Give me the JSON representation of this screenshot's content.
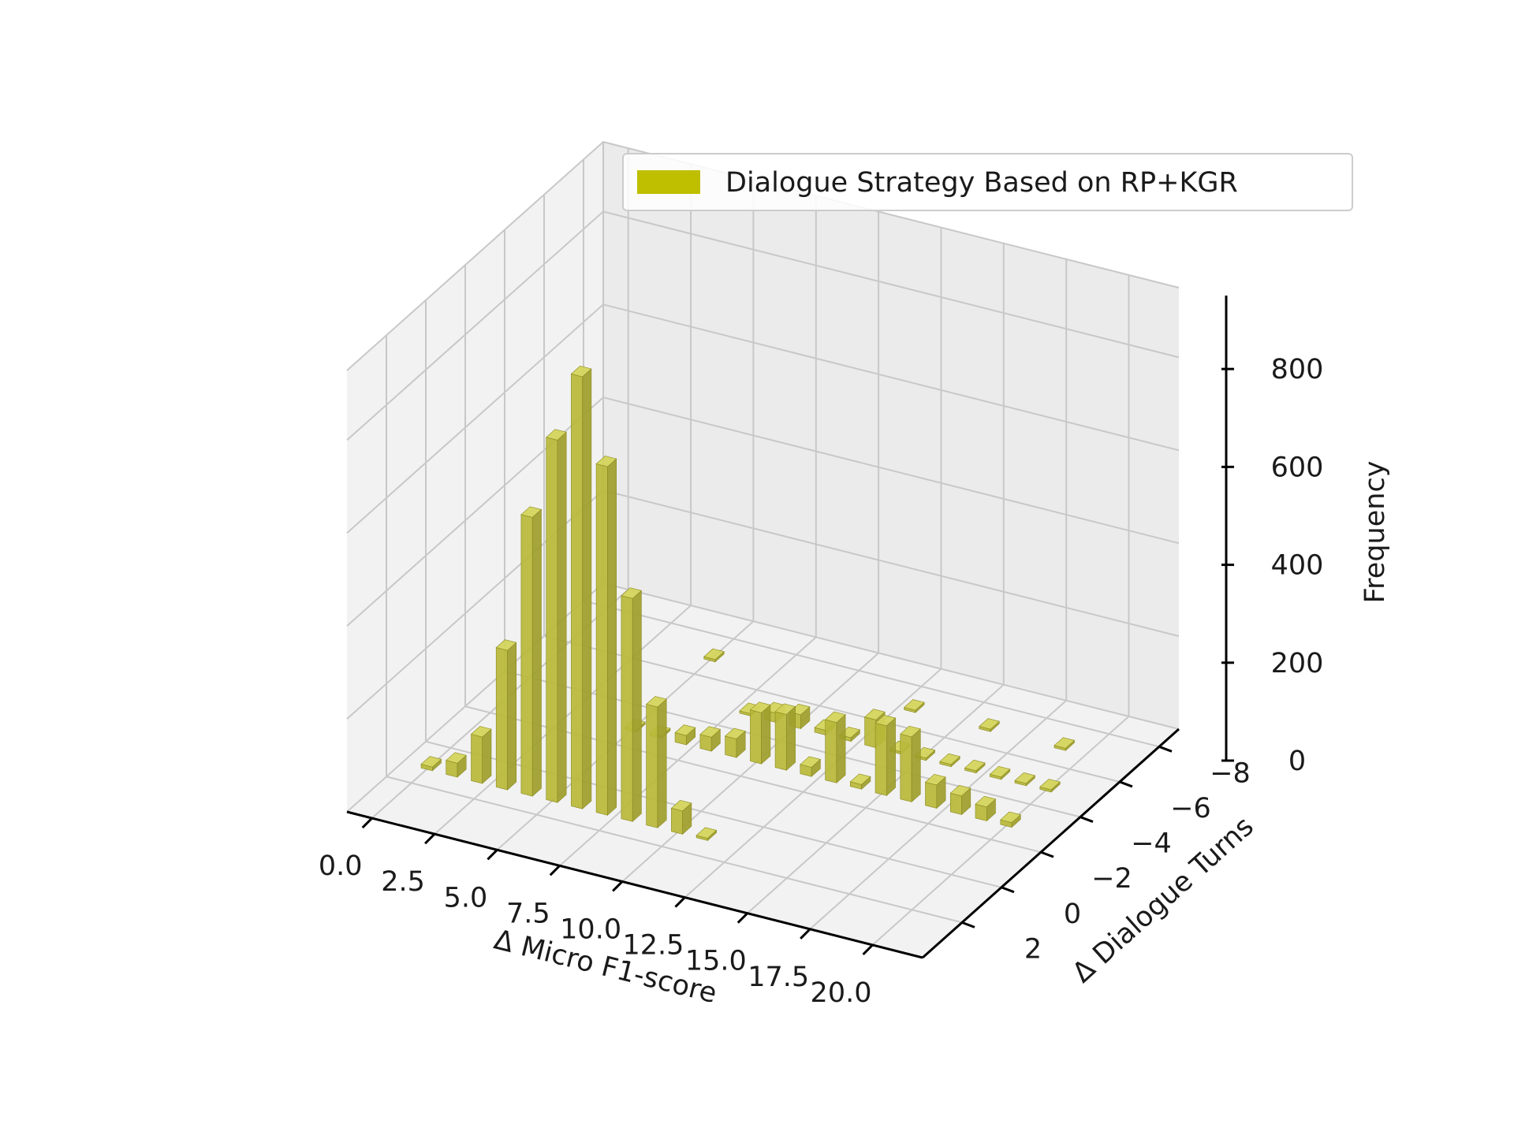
{
  "chart_data": {
    "type": "bar3d",
    "title": "",
    "xlabel": "Δ Micro F1-score",
    "ylabel": "Δ Dialogue Turns",
    "zlabel": "Frequency",
    "xticks": [
      "0.0",
      "2.5",
      "5.0",
      "7.5",
      "10.0",
      "12.5",
      "15.0",
      "17.5",
      "20.0"
    ],
    "yticks": [
      "−8",
      "−6",
      "−4",
      "−2",
      "0",
      "2"
    ],
    "zticks": [
      "0",
      "200",
      "400",
      "600",
      "800"
    ],
    "xlim": [
      -1,
      22
    ],
    "ylim": [
      -9,
      4
    ],
    "zlim": [
      0,
      950
    ],
    "grid": true,
    "legend_position": "top-right",
    "series": [
      {
        "name": "Dialogue Strategy Based on RP+KGR",
        "color": "#bfbf00",
        "points": [
          {
            "x": 0,
            "y": 1,
            "z": 8
          },
          {
            "x": 1,
            "y": 1,
            "z": 30
          },
          {
            "x": 2,
            "y": 1,
            "z": 100
          },
          {
            "x": 3,
            "y": 1,
            "z": 300
          },
          {
            "x": 4,
            "y": 1,
            "z": 600
          },
          {
            "x": 5,
            "y": 1,
            "z": 780
          },
          {
            "x": 6,
            "y": 1,
            "z": 930
          },
          {
            "x": 7,
            "y": 1,
            "z": 750
          },
          {
            "x": 8,
            "y": 1,
            "z": 480
          },
          {
            "x": 9,
            "y": 1,
            "z": 260
          },
          {
            "x": 10,
            "y": 1,
            "z": 50
          },
          {
            "x": 11,
            "y": 1,
            "z": 5
          },
          {
            "x": 5,
            "y": -3,
            "z": 5
          },
          {
            "x": 6,
            "y": -3,
            "z": 5
          },
          {
            "x": 7,
            "y": -3,
            "z": 20
          },
          {
            "x": 8,
            "y": -3,
            "z": 30
          },
          {
            "x": 9,
            "y": -3,
            "z": 40
          },
          {
            "x": 10,
            "y": -3,
            "z": 110
          },
          {
            "x": 11,
            "y": -3,
            "z": 120
          },
          {
            "x": 12,
            "y": -3,
            "z": 20
          },
          {
            "x": 13,
            "y": -3,
            "z": 130
          },
          {
            "x": 14,
            "y": -3,
            "z": 10
          },
          {
            "x": 15,
            "y": -3,
            "z": 150
          },
          {
            "x": 16,
            "y": -3,
            "z": 140
          },
          {
            "x": 17,
            "y": -3,
            "z": 50
          },
          {
            "x": 18,
            "y": -3,
            "z": 40
          },
          {
            "x": 19,
            "y": -3,
            "z": 30
          },
          {
            "x": 20,
            "y": -3,
            "z": 10
          },
          {
            "x": 8,
            "y": -5,
            "z": 5
          },
          {
            "x": 9,
            "y": -5,
            "z": 20
          },
          {
            "x": 10,
            "y": -5,
            "z": 30
          },
          {
            "x": 11,
            "y": -5,
            "z": 10
          },
          {
            "x": 12,
            "y": -5,
            "z": 8
          },
          {
            "x": 13,
            "y": -5,
            "z": 60
          },
          {
            "x": 14,
            "y": -5,
            "z": 5
          },
          {
            "x": 15,
            "y": -5,
            "z": 5
          },
          {
            "x": 16,
            "y": -5,
            "z": 5
          },
          {
            "x": 17,
            "y": -5,
            "z": 5
          },
          {
            "x": 18,
            "y": -5,
            "z": 5
          },
          {
            "x": 19,
            "y": -5,
            "z": 5
          },
          {
            "x": 20,
            "y": -5,
            "z": 5
          },
          {
            "x": 5,
            "y": -7,
            "z": 5
          },
          {
            "x": 13,
            "y": -7,
            "z": 5
          },
          {
            "x": 16,
            "y": -7,
            "z": 5
          },
          {
            "x": 19,
            "y": -7,
            "z": 5
          }
        ]
      }
    ]
  }
}
